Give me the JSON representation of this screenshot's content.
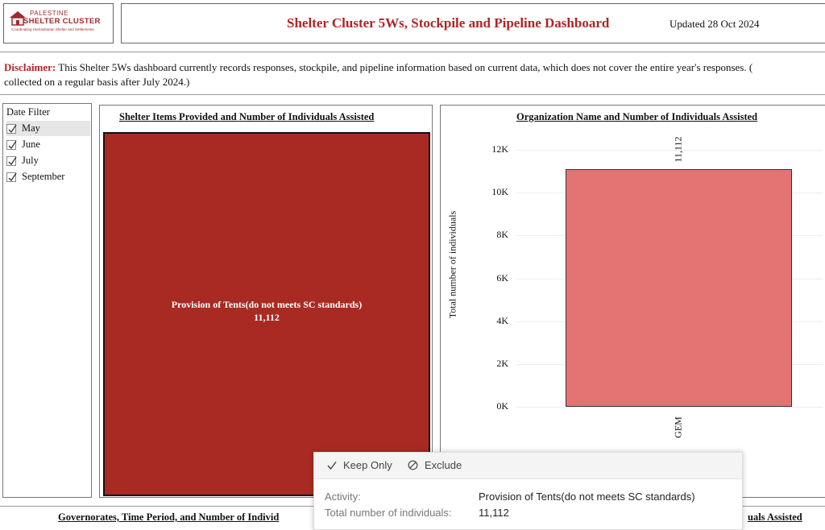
{
  "header": {
    "logo": {
      "line1": "PALESTINE",
      "line2": "SHELTER CLUSTER",
      "line3": "Coordinating Humanitarian Shelter and Settlements"
    },
    "title": "Shelter Cluster 5Ws, Stockpile and Pipeline Dashboard",
    "updated": "Updated 28 Oct 2024"
  },
  "disclaimer": {
    "label": "Disclaimer:",
    "text1": " This Shelter 5Ws dashboard currently records responses, stockpile, and pipeline information based on current data, which does not cover the entire year's responses. (",
    "text2": "collected on a regular basis after July 2024.)"
  },
  "date_filter": {
    "title": "Date Filter",
    "items": [
      {
        "label": "May",
        "checked": true,
        "selected": true
      },
      {
        "label": "June",
        "checked": true,
        "selected": false
      },
      {
        "label": "July",
        "checked": true,
        "selected": false
      },
      {
        "label": "September",
        "checked": true,
        "selected": false
      }
    ]
  },
  "treemap_panel": {
    "title": "Shelter Items Provided and Number of Individuals Assisted",
    "cell_label": "Provision of Tents(do not meets SC standards)",
    "cell_value": "11,112",
    "color": "#a92a22"
  },
  "chart_data": {
    "type": "bar",
    "title": "Organization Name and Number of Individuals Assisted",
    "categories": [
      "GEM"
    ],
    "values": [
      11112
    ],
    "data_labels": [
      "11,112"
    ],
    "ylabel": "Total number of individuals",
    "yticks": [
      "0K",
      "2K",
      "4K",
      "6K",
      "8K",
      "10K",
      "12K"
    ],
    "ylim": [
      0,
      13000
    ],
    "grid": true,
    "bar_color": "#e47474"
  },
  "bottom": {
    "left_title": "Governorates, Time Period, and Number of Individ",
    "right_title": "uals Assisted"
  },
  "tooltip": {
    "keep_only": "Keep Only",
    "exclude": "Exclude",
    "rows": [
      {
        "key": "Activity:",
        "value": "Provision of Tents(do not meets SC standards)"
      },
      {
        "key": "Total number of individuals:",
        "value": "11,112"
      }
    ]
  }
}
